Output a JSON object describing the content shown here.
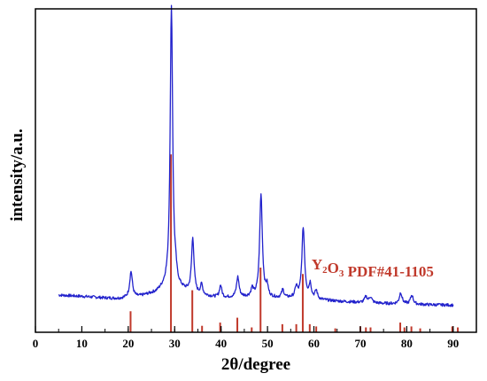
{
  "chart_data": {
    "type": "line",
    "xlabel": "2θ/degree",
    "ylabel": "intensity/a.u.",
    "xlim": [
      0,
      95
    ],
    "ylim": [
      0,
      100
    ],
    "x_ticks": [
      0,
      10,
      20,
      30,
      40,
      50,
      60,
      70,
      80,
      90
    ],
    "x_minor_step": 5,
    "grid": false,
    "colors": {
      "pattern": "#2222cc",
      "reference": "#c0392b",
      "axes": "#000000"
    },
    "annotation": {
      "parts": [
        {
          "text": "Y",
          "sub": false
        },
        {
          "text": "2",
          "sub": true
        },
        {
          "text": "O",
          "sub": false
        },
        {
          "text": "3",
          "sub": true
        },
        {
          "text": " PDF#41-1105",
          "sub": false
        }
      ],
      "position": "middle-right"
    },
    "series": [
      {
        "kind": "xrd-pattern",
        "baseline": [
          [
            5,
            11.5
          ],
          [
            10,
            11.1
          ],
          [
            15,
            10.6
          ],
          [
            18,
            10.4
          ],
          [
            22,
            10.9
          ],
          [
            26,
            12.2
          ],
          [
            28,
            13.8
          ],
          [
            31,
            13.2
          ],
          [
            35,
            11.4
          ],
          [
            40,
            10.6
          ],
          [
            45,
            10.8
          ],
          [
            50,
            10.5
          ],
          [
            55,
            10.5
          ],
          [
            60,
            10.1
          ],
          [
            65,
            9.6
          ],
          [
            70,
            9.2
          ],
          [
            75,
            8.9
          ],
          [
            80,
            8.7
          ],
          [
            85,
            8.5
          ],
          [
            90,
            8.4
          ]
        ],
        "peaks": [
          [
            20.6,
            8.0,
            0.35
          ],
          [
            29.3,
            87.5,
            0.32
          ],
          [
            30.2,
            3.0,
            0.3
          ],
          [
            33.9,
            17.0,
            0.32
          ],
          [
            35.8,
            3.2,
            0.3
          ],
          [
            39.9,
            3.8,
            0.3
          ],
          [
            43.6,
            6.2,
            0.33
          ],
          [
            46.7,
            2.5,
            0.3
          ],
          [
            48.6,
            32.0,
            0.35
          ],
          [
            49.9,
            3.2,
            0.3
          ],
          [
            53.3,
            2.5,
            0.3
          ],
          [
            56.2,
            3.3,
            0.3
          ],
          [
            57.7,
            22.0,
            0.35
          ],
          [
            59.2,
            4.4,
            0.3
          ],
          [
            60.5,
            2.6,
            0.3
          ],
          [
            71.2,
            1.8,
            0.35
          ],
          [
            72.2,
            1.8,
            0.35
          ],
          [
            78.7,
            3.5,
            0.35
          ],
          [
            81.1,
            2.8,
            0.35
          ]
        ],
        "x_range": [
          5,
          90
        ]
      },
      {
        "kind": "reference-sticks",
        "sticks": [
          [
            20.5,
            6.5
          ],
          [
            29.2,
            55.0
          ],
          [
            33.8,
            13.0
          ],
          [
            35.9,
            2.0
          ],
          [
            39.8,
            3.0
          ],
          [
            43.5,
            4.5
          ],
          [
            46.6,
            1.5
          ],
          [
            48.5,
            20.0
          ],
          [
            53.2,
            2.5
          ],
          [
            56.2,
            2.5
          ],
          [
            57.6,
            18.0
          ],
          [
            59.1,
            2.5
          ],
          [
            60.5,
            1.8
          ],
          [
            64.6,
            1.2
          ],
          [
            70.0,
            1.8
          ],
          [
            71.2,
            1.5
          ],
          [
            72.2,
            1.5
          ],
          [
            78.6,
            3.0
          ],
          [
            79.5,
            1.5
          ],
          [
            81.0,
            1.8
          ],
          [
            82.9,
            1.2
          ],
          [
            89.8,
            1.8
          ],
          [
            91.0,
            1.5
          ]
        ]
      }
    ]
  }
}
